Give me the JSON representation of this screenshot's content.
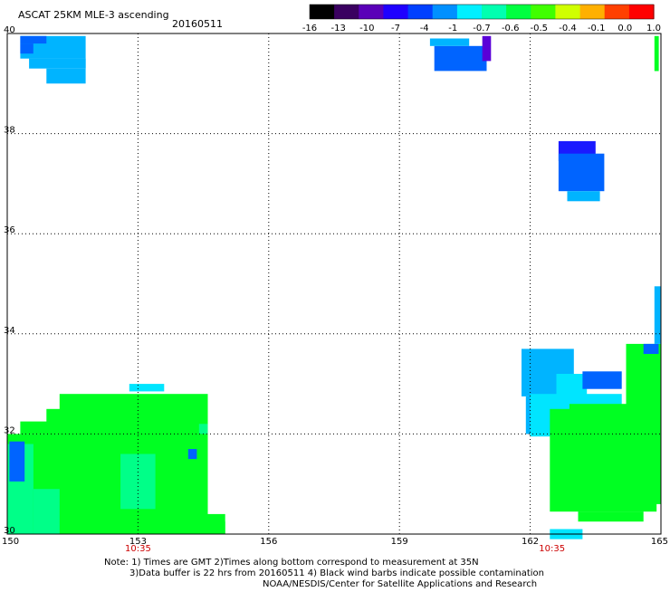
{
  "header": {
    "title": "ASCAT 25KM MLE-3 ascending",
    "date": "20160511"
  },
  "colorbar": {
    "tick_labels": [
      "-16",
      "-13",
      "-10",
      "-7",
      "-4",
      "-1",
      "-0.7",
      "-0.6",
      "-0.5",
      "-0.4",
      "-0.1",
      "0.0",
      "1.0"
    ],
    "colors": [
      "#000000",
      "#3a0060",
      "#5a00b8",
      "#1f00ff",
      "#0040ff",
      "#0090ff",
      "#00f0ff",
      "#00ffb0",
      "#00ff40",
      "#40ff00",
      "#d0ff00",
      "#ffb000",
      "#ff4000",
      "#ff0000"
    ]
  },
  "colors": {
    "cyan": "#00e5ff",
    "sky": "#00b4ff",
    "blue": "#0064ff",
    "deep_blue": "#1a1aff",
    "violet": "#5a00d8",
    "green": "#00ff22",
    "mint": "#00ff88",
    "seafoam": "#00ffc8",
    "grid": "#000000",
    "time_label": "#cc0000"
  },
  "chart_data": {
    "type": "heatmap",
    "title": "ASCAT 25KM MLE-3 ascending",
    "date": "20160511",
    "x_axis": {
      "range": [
        150,
        165
      ],
      "ticks": [
        150,
        153,
        156,
        159,
        162,
        165
      ],
      "tick_labels": [
        "150",
        "153",
        "156",
        "159",
        "162",
        "165"
      ]
    },
    "y_axis": {
      "range": [
        30,
        40
      ],
      "ticks": [
        30,
        32,
        34,
        36,
        38,
        40
      ],
      "tick_labels": [
        "30",
        "32",
        "34",
        "36",
        "38",
        "40"
      ]
    },
    "grid": true,
    "time_labels": [
      {
        "lon": 153,
        "text": "10:35"
      },
      {
        "lon": 162.5,
        "text": "10:35"
      }
    ],
    "regions": [
      {
        "name": "nw-patch",
        "value": -1.0,
        "color": "sky",
        "cells": [
          [
            150.3,
            39.5,
            151.8,
            39.95
          ],
          [
            150.5,
            39.3,
            151.8,
            39.5
          ],
          [
            150.9,
            39.0,
            151.8,
            39.3
          ]
        ]
      },
      {
        "name": "nw-patch-edge",
        "value": -4,
        "color": "blue",
        "cells": [
          [
            150.3,
            39.8,
            150.9,
            39.95
          ],
          [
            150.3,
            39.6,
            150.6,
            39.8
          ]
        ]
      },
      {
        "name": "north-patch",
        "value": -4,
        "color": "blue",
        "cells": [
          [
            159.8,
            39.25,
            161.0,
            39.75
          ]
        ]
      },
      {
        "name": "north-patch-top",
        "value": -1.0,
        "color": "sky",
        "cells": [
          [
            159.7,
            39.75,
            160.6,
            39.9
          ]
        ]
      },
      {
        "name": "north-patch-edge",
        "value": -13,
        "color": "violet",
        "cells": [
          [
            160.9,
            39.45,
            161.1,
            39.95
          ]
        ]
      },
      {
        "name": "east-blip",
        "value": -0.5,
        "color": "green",
        "cells": [
          [
            164.85,
            39.25,
            164.95,
            39.95
          ]
        ]
      },
      {
        "name": "island-patch",
        "value": -7,
        "color": "deep_blue",
        "cells": [
          [
            162.65,
            37.45,
            163.5,
            37.85
          ]
        ]
      },
      {
        "name": "island-patch-body",
        "value": -4,
        "color": "blue",
        "cells": [
          [
            162.65,
            36.85,
            163.7,
            37.6
          ]
        ]
      },
      {
        "name": "island-patch-base",
        "value": -1.0,
        "color": "sky",
        "cells": [
          [
            162.85,
            36.65,
            163.6,
            36.85
          ]
        ]
      },
      {
        "name": "sw-green",
        "value": -0.5,
        "color": "green",
        "cells": [
          [
            150.0,
            30.0,
            152.25,
            32.0
          ],
          [
            150.3,
            32.0,
            151.1,
            32.25
          ],
          [
            150.9,
            32.0,
            152.3,
            32.5
          ],
          [
            151.2,
            30.0,
            154.6,
            32.8
          ],
          [
            152.3,
            32.0,
            154.6,
            32.55
          ],
          [
            152.8,
            30.0,
            155.0,
            30.4
          ],
          [
            154.3,
            30.0,
            155.0,
            30.25
          ]
        ]
      },
      {
        "name": "sw-cyan-top",
        "value": -0.7,
        "color": "cyan",
        "cells": [
          [
            152.8,
            32.85,
            153.6,
            33.0
          ]
        ]
      },
      {
        "name": "sw-seafoam",
        "value": -0.6,
        "color": "mint",
        "cells": [
          [
            150.0,
            30.0,
            150.6,
            31.8
          ],
          [
            150.6,
            30.0,
            151.2,
            30.9
          ],
          [
            152.6,
            30.5,
            153.4,
            31.6
          ],
          [
            154.4,
            32.0,
            154.6,
            32.2
          ]
        ]
      },
      {
        "name": "sw-blue",
        "value": -4,
        "color": "blue",
        "cells": [
          [
            150.05,
            31.05,
            150.4,
            31.85
          ],
          [
            154.15,
            31.5,
            154.35,
            31.7
          ]
        ]
      },
      {
        "name": "se-sky",
        "value": -1.0,
        "color": "sky",
        "cells": [
          [
            161.8,
            32.75,
            163.0,
            33.7
          ],
          [
            161.9,
            32.0,
            162.6,
            32.75
          ]
        ]
      },
      {
        "name": "se-cyan",
        "value": -0.7,
        "color": "cyan",
        "cells": [
          [
            162.0,
            31.95,
            164.1,
            32.8
          ],
          [
            162.6,
            32.5,
            163.3,
            33.2
          ]
        ]
      },
      {
        "name": "se-green",
        "value": -0.5,
        "color": "green",
        "cells": [
          [
            162.45,
            30.45,
            164.9,
            32.5
          ],
          [
            163.1,
            30.25,
            164.6,
            30.45
          ],
          [
            164.2,
            30.6,
            165.0,
            33.8
          ],
          [
            162.9,
            32.2,
            164.2,
            32.6
          ]
        ]
      },
      {
        "name": "se-blue",
        "value": -4,
        "color": "blue",
        "cells": [
          [
            163.2,
            32.9,
            164.1,
            33.25
          ],
          [
            164.6,
            33.6,
            164.95,
            33.8
          ]
        ]
      },
      {
        "name": "se-east-strip",
        "value": -1.0,
        "color": "sky",
        "cells": [
          [
            164.85,
            33.8,
            165.0,
            34.95
          ]
        ]
      },
      {
        "name": "se-bottom",
        "value": -0.7,
        "color": "cyan",
        "cells": [
          [
            162.45,
            29.9,
            163.2,
            30.1
          ]
        ]
      }
    ]
  },
  "footer": {
    "note_line1": "Note: 1) Times are GMT 2)Times along bottom correspond to measurement at 35N",
    "note_line2": "3)Data buffer is 22 hrs from 20160511 4) Black wind barbs indicate possible contamination",
    "credit": "NOAA/NESDIS/Center for Satellite Applications and Research"
  }
}
